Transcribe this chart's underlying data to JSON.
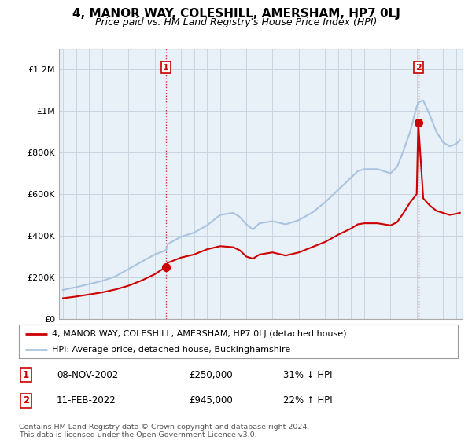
{
  "title": "4, MANOR WAY, COLESHILL, AMERSHAM, HP7 0LJ",
  "subtitle": "Price paid vs. HM Land Registry's House Price Index (HPI)",
  "ylim": [
    0,
    1300000
  ],
  "xlim_start": 1994.7,
  "xlim_end": 2025.5,
  "sale1_x": 2002.86,
  "sale1_y": 250000,
  "sale2_x": 2022.12,
  "sale2_y": 945000,
  "red_color": "#cc0000",
  "blue_color": "#aac4e0",
  "bg_plot_color": "#e8f0f8",
  "legend_line1": "4, MANOR WAY, COLESHILL, AMERSHAM, HP7 0LJ (detached house)",
  "legend_line2": "HPI: Average price, detached house, Buckinghamshire",
  "table_row1": [
    "1",
    "08-NOV-2002",
    "£250,000",
    "31% ↓ HPI"
  ],
  "table_row2": [
    "2",
    "11-FEB-2022",
    "£945,000",
    "22% ↑ HPI"
  ],
  "footnote": "Contains HM Land Registry data © Crown copyright and database right 2024.\nThis data is licensed under the Open Government Licence v3.0.",
  "bg_color": "#ffffff",
  "grid_color": "#c8d4e0",
  "title_fontsize": 11,
  "subtitle_fontsize": 9,
  "hpi_years": [
    1995,
    1996,
    1997,
    1998,
    1999,
    2000,
    2001,
    2002,
    2002.86,
    2003,
    2004,
    2005,
    2006,
    2007,
    2008,
    2008.5,
    2009,
    2009.5,
    2010,
    2011,
    2012,
    2013,
    2014,
    2015,
    2016,
    2017,
    2017.5,
    2018,
    2019,
    2020,
    2020.5,
    2021,
    2021.5,
    2022,
    2022.12,
    2022.5,
    2023,
    2023.5,
    2024,
    2024.5,
    2025,
    2025.3
  ],
  "hpi_values": [
    140000,
    153000,
    168000,
    183000,
    205000,
    240000,
    275000,
    310000,
    330000,
    360000,
    395000,
    415000,
    450000,
    500000,
    510000,
    490000,
    455000,
    430000,
    460000,
    470000,
    455000,
    475000,
    510000,
    560000,
    620000,
    680000,
    710000,
    720000,
    720000,
    700000,
    730000,
    810000,
    900000,
    1020000,
    1040000,
    1050000,
    980000,
    900000,
    850000,
    830000,
    840000,
    860000
  ],
  "red_years": [
    1995,
    1996,
    1997,
    1998,
    1999,
    2000,
    2001,
    2002,
    2002.86,
    2003,
    2004,
    2005,
    2006,
    2007,
    2008,
    2008.5,
    2009,
    2009.5,
    2010,
    2011,
    2012,
    2013,
    2014,
    2015,
    2016,
    2017,
    2017.5,
    2018,
    2019,
    2020,
    2020.5,
    2021,
    2021.5,
    2022,
    2022.12,
    2022.5,
    2023,
    2023.5,
    2024,
    2024.5,
    2025,
    2025.3
  ],
  "red_values": [
    100000,
    108000,
    118000,
    128000,
    142000,
    160000,
    185000,
    215000,
    250000,
    270000,
    295000,
    310000,
    335000,
    350000,
    345000,
    330000,
    300000,
    290000,
    310000,
    320000,
    305000,
    320000,
    345000,
    370000,
    405000,
    435000,
    455000,
    460000,
    460000,
    450000,
    465000,
    510000,
    560000,
    600000,
    945000,
    580000,
    545000,
    520000,
    510000,
    500000,
    505000,
    510000
  ]
}
